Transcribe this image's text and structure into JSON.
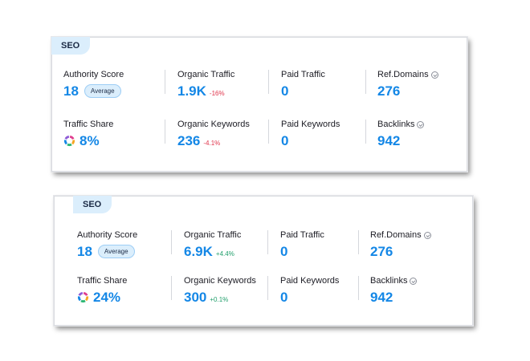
{
  "cards": [
    {
      "tag": "SEO",
      "authority_score": {
        "label": "Authority Score",
        "value": "18",
        "badge": "Average"
      },
      "organic_traffic": {
        "label": "Organic Traffic",
        "value": "1.9K",
        "change": "-16%"
      },
      "paid_traffic": {
        "label": "Paid Traffic",
        "value": "0"
      },
      "ref_domains": {
        "label": "Ref.Domains",
        "value": "276"
      },
      "traffic_share": {
        "label": "Traffic Share",
        "value": "8%"
      },
      "organic_keywords": {
        "label": "Organic Keywords",
        "value": "236",
        "change": "-4.1%"
      },
      "paid_keywords": {
        "label": "Paid Keywords",
        "value": "0"
      },
      "backlinks": {
        "label": "Backlinks",
        "value": "942"
      }
    },
    {
      "tag": "SEO",
      "authority_score": {
        "label": "Authority Score",
        "value": "18",
        "badge": "Average"
      },
      "organic_traffic": {
        "label": "Organic Traffic",
        "value": "6.9K",
        "change": "+4.4%"
      },
      "paid_traffic": {
        "label": "Paid Traffic",
        "value": "0"
      },
      "ref_domains": {
        "label": "Ref.Domains",
        "value": "276"
      },
      "traffic_share": {
        "label": "Traffic Share",
        "value": "24%"
      },
      "organic_keywords": {
        "label": "Organic Keywords",
        "value": "300",
        "change": "+0.1%"
      },
      "paid_keywords": {
        "label": "Paid Keywords",
        "value": "0"
      },
      "backlinks": {
        "label": "Backlinks",
        "value": "942"
      }
    }
  ],
  "colors": {
    "value": "#1487e6",
    "negative": "#e0344b",
    "positive": "#1f9e6a",
    "tag_bg": "#dbeefc",
    "donut": [
      "#e03d8e",
      "#f5a623",
      "#2bb673",
      "#1487e6",
      "#8e5bd6"
    ]
  },
  "icons": {
    "info": "info-circle-icon",
    "traffic_share": "donut-chart-icon"
  }
}
